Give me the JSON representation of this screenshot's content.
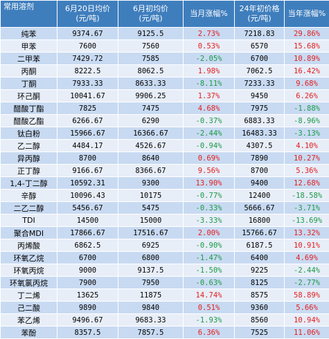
{
  "colors": {
    "header_bg": "#3f7ebd",
    "row_odd": "#c8daf2",
    "row_even": "#e8eef8",
    "positive": "#e41d1d",
    "negative": "#1b9a46"
  },
  "headers": {
    "category": "常用溶剂",
    "price_jun20_l1": "6月20日均价",
    "price_jun20_l2": "(元/吨)",
    "price_jun1_l1": "6月初均价",
    "price_jun1_l2": "(元/吨)",
    "month_change": "当月涨幅%",
    "price_24_l1": "24年初价格",
    "price_24_l2": "(元/吨)",
    "year_change": "当年涨幅%"
  },
  "rows": [
    {
      "name": "纯苯",
      "p20": "9374.67",
      "p1": "9125.5",
      "m": "2.73%",
      "ms": "pos",
      "p24": "7218.83",
      "y": "29.86%",
      "ys": "pos"
    },
    {
      "name": "甲苯",
      "p20": "7600",
      "p1": "7560",
      "m": "0.53%",
      "ms": "pos",
      "p24": "6570",
      "y": "15.68%",
      "ys": "pos"
    },
    {
      "name": "二甲苯",
      "p20": "7429.72",
      "p1": "7585",
      "m": "-2.05%",
      "ms": "neg",
      "p24": "6700",
      "y": "10.89%",
      "ys": "pos"
    },
    {
      "name": "丙酮",
      "p20": "8222.5",
      "p1": "8062.5",
      "m": "1.98%",
      "ms": "pos",
      "p24": "7062.5",
      "y": "16.42%",
      "ys": "pos"
    },
    {
      "name": "丁酮",
      "p20": "7933.33",
      "p1": "8633.33",
      "m": "-8.11%",
      "ms": "neg",
      "p24": "7233.33",
      "y": "9.68%",
      "ys": "pos"
    },
    {
      "name": "环己酮",
      "p20": "10041.67",
      "p1": "9906.25",
      "m": "1.37%",
      "ms": "pos",
      "p24": "9450",
      "y": "6.26%",
      "ys": "pos"
    },
    {
      "name": "醋酸丁酯",
      "p20": "7825",
      "p1": "7475",
      "m": "4.68%",
      "ms": "pos",
      "p24": "7975",
      "y": "-1.88%",
      "ys": "neg"
    },
    {
      "name": "醋酸乙酯",
      "p20": "6266.67",
      "p1": "6290",
      "m": "-0.37%",
      "ms": "neg",
      "p24": "6883.33",
      "y": "-8.96%",
      "ys": "neg"
    },
    {
      "name": "钛白粉",
      "p20": "15966.67",
      "p1": "16366.67",
      "m": "-2.44%",
      "ms": "neg",
      "p24": "16483.33",
      "y": "-3.13%",
      "ys": "neg"
    },
    {
      "name": "乙二醇",
      "p20": "4484.17",
      "p1": "4526.67",
      "m": "-0.94%",
      "ms": "neg",
      "p24": "4307.5",
      "y": "4.10%",
      "ys": "pos"
    },
    {
      "name": "异丙醇",
      "p20": "8700",
      "p1": "8640",
      "m": "0.69%",
      "ms": "pos",
      "p24": "7890",
      "y": "10.27%",
      "ys": "pos"
    },
    {
      "name": "正丁醇",
      "p20": "9166.67",
      "p1": "8366.67",
      "m": "9.56%",
      "ms": "pos",
      "p24": "8700",
      "y": "5.36%",
      "ys": "pos"
    },
    {
      "name": "1,4-丁二醇",
      "p20": "10592.31",
      "p1": "9300",
      "m": "13.90%",
      "ms": "pos",
      "p24": "9400",
      "y": "12.68%",
      "ys": "pos"
    },
    {
      "name": "辛醇",
      "p20": "10096.43",
      "p1": "10175",
      "m": "-0.77%",
      "ms": "neg",
      "p24": "12400",
      "y": "-18.58%",
      "ys": "neg"
    },
    {
      "name": "二乙二醇",
      "p20": "5456.67",
      "p1": "5475",
      "m": "-0.33%",
      "ms": "neg",
      "p24": "5666.67",
      "y": "-3.71%",
      "ys": "neg"
    },
    {
      "name": "TDI",
      "p20": "14500",
      "p1": "15000",
      "m": "-3.33%",
      "ms": "neg",
      "p24": "16800",
      "y": "-13.69%",
      "ys": "neg"
    },
    {
      "name": "聚合MDI",
      "p20": "17866.67",
      "p1": "17516.67",
      "m": "2.00%",
      "ms": "pos",
      "p24": "15766.67",
      "y": "13.32%",
      "ys": "pos"
    },
    {
      "name": "丙烯酸",
      "p20": "6862.5",
      "p1": "6925",
      "m": "-0.90%",
      "ms": "neg",
      "p24": "6187.5",
      "y": "10.91%",
      "ys": "pos"
    },
    {
      "name": "环氧乙烷",
      "p20": "6700",
      "p1": "6800",
      "m": "-1.47%",
      "ms": "neg",
      "p24": "6400",
      "y": "4.69%",
      "ys": "pos"
    },
    {
      "name": "环氧丙烷",
      "p20": "9000",
      "p1": "9137.5",
      "m": "-1.50%",
      "ms": "neg",
      "p24": "9225",
      "y": "-2.44%",
      "ys": "neg"
    },
    {
      "name": "环氧氯丙烷",
      "p20": "7900",
      "p1": "7950",
      "m": "-0.63%",
      "ms": "neg",
      "p24": "8125",
      "y": "-2.77%",
      "ys": "neg"
    },
    {
      "name": "丁二烯",
      "p20": "13625",
      "p1": "11875",
      "m": "14.74%",
      "ms": "pos",
      "p24": "8575",
      "y": "58.89%",
      "ys": "pos"
    },
    {
      "name": "己二酸",
      "p20": "9890",
      "p1": "9840",
      "m": "0.51%",
      "ms": "pos",
      "p24": "9360",
      "y": "5.66%",
      "ys": "pos"
    },
    {
      "name": "苯乙烯",
      "p20": "9496.67",
      "p1": "9683.33",
      "m": "-1.93%",
      "ms": "neg",
      "p24": "8560",
      "y": "10.94%",
      "ys": "pos"
    },
    {
      "name": "苯酚",
      "p20": "8357.5",
      "p1": "7857.5",
      "m": "6.36%",
      "ms": "pos",
      "p24": "7525",
      "y": "11.06%",
      "ys": "pos"
    }
  ]
}
